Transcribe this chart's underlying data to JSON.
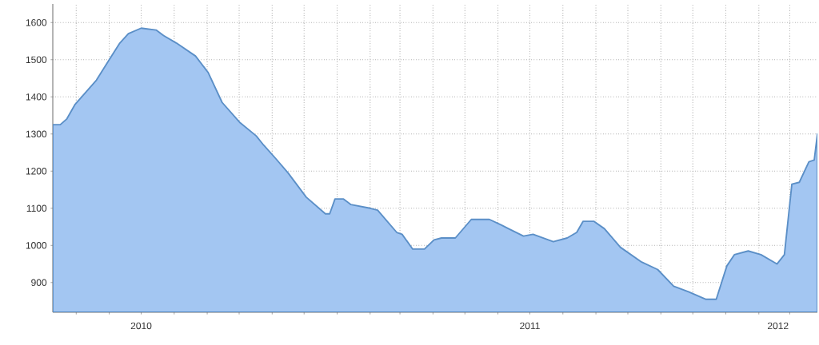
{
  "chart_data": {
    "type": "area",
    "color": "#5b8fc7",
    "x": [
      "2010-04-09",
      "2010-04-16",
      "2010-04-22",
      "2010-04-30",
      "2010-05-20",
      "2010-06-01",
      "2010-06-11",
      "2010-06-19",
      "2010-07-01",
      "2010-07-15",
      "2010-07-22",
      "2010-08-03",
      "2010-08-21",
      "2010-09-02",
      "2010-09-15",
      "2010-10-02",
      "2010-10-17",
      "2010-10-24",
      "2010-11-04",
      "2010-11-16",
      "2010-12-03",
      "2010-12-21",
      "2010-12-25",
      "2010-12-30",
      "2011-01-07",
      "2011-01-14",
      "2011-02-01",
      "2011-02-08",
      "2011-02-26",
      "2011-03-03",
      "2011-03-13",
      "2011-03-24",
      "2011-04-02",
      "2011-04-09",
      "2011-04-22",
      "2011-05-07",
      "2011-05-24",
      "2011-06-04",
      "2011-06-11",
      "2011-06-25",
      "2011-07-04",
      "2011-07-23",
      "2011-08-05",
      "2011-08-14",
      "2011-08-20",
      "2011-08-30",
      "2011-09-09",
      "2011-09-24",
      "2011-10-14",
      "2011-10-29",
      "2011-11-13",
      "2011-11-27",
      "2011-12-13",
      "2011-12-23",
      "2012-01-02",
      "2012-01-09",
      "2012-01-22",
      "2012-02-03",
      "2012-02-18",
      "2012-02-25",
      "2012-03-03",
      "2012-03-10",
      "2012-03-19",
      "2012-03-24",
      "2012-03-27"
    ],
    "series": [
      {
        "color": "#a3c6f2",
        "values": [
          1325,
          1325,
          1340,
          1380,
          1445,
          1500,
          1545,
          1570,
          1585,
          1580,
          1565,
          1545,
          1510,
          1465,
          1385,
          1330,
          1295,
          1270,
          1235,
          1195,
          1130,
          1085,
          1085,
          1125,
          1125,
          1110,
          1100,
          1095,
          1035,
          1030,
          990,
          990,
          1015,
          1020,
          1020,
          1070,
          1070,
          1055,
          1045,
          1025,
          1030,
          1010,
          1020,
          1035,
          1065,
          1065,
          1045,
          995,
          955,
          935,
          890,
          875,
          855,
          855,
          945,
          975,
          985,
          975,
          950,
          975,
          1165,
          1170,
          1225,
          1230,
          1300
        ]
      }
    ],
    "xlim": [
      "2010-04-09",
      "2012-03-27"
    ],
    "ylim": [
      820,
      1650
    ],
    "yticks": [
      900,
      1000,
      1100,
      1200,
      1300,
      1400,
      1500,
      1600
    ],
    "xticks": [
      {
        "value": "2010-05-01",
        "label": null
      },
      {
        "value": "2010-06-01",
        "label": null
      },
      {
        "value": "2010-07-01",
        "label": null
      },
      {
        "value": "2010-08-01",
        "label": null
      },
      {
        "value": "2010-09-01",
        "label": null
      },
      {
        "value": "2010-10-01",
        "label": null
      },
      {
        "value": "2010-11-01",
        "label": null
      },
      {
        "value": "2010-12-01",
        "label": null
      },
      {
        "value": "2011-01-01",
        "label": null
      },
      {
        "value": "2011-02-01",
        "label": null
      },
      {
        "value": "2011-03-01",
        "label": null
      },
      {
        "value": "2011-04-01",
        "label": null
      },
      {
        "value": "2011-05-01",
        "label": null
      },
      {
        "value": "2011-06-01",
        "label": null
      },
      {
        "value": "2011-07-01",
        "label": null
      },
      {
        "value": "2011-08-01",
        "label": null
      },
      {
        "value": "2011-09-01",
        "label": null
      },
      {
        "value": "2011-10-01",
        "label": null
      },
      {
        "value": "2011-11-01",
        "label": null
      },
      {
        "value": "2011-12-01",
        "label": null
      },
      {
        "value": "2012-01-01",
        "label": null
      },
      {
        "value": "2012-02-01",
        "label": null
      },
      {
        "value": "2012-03-01",
        "label": null
      },
      {
        "value": "2010-07-01",
        "label": "2010"
      },
      {
        "value": "2011-07-01",
        "label": "2011"
      },
      {
        "value": "2012-02-19",
        "label": "2012"
      }
    ],
    "grid": true,
    "legend": false,
    "marker": "none",
    "line_style": "solid"
  }
}
